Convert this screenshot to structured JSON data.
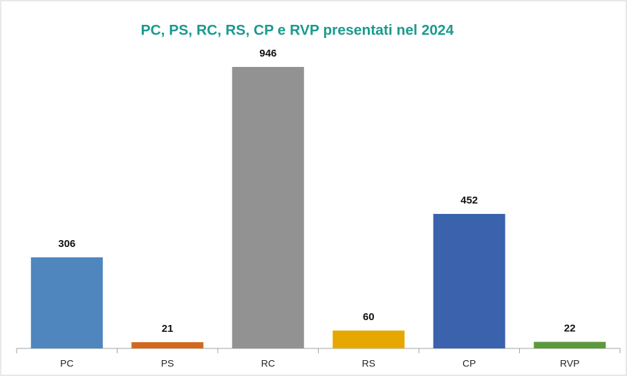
{
  "chart_data": {
    "type": "bar",
    "title": "PC, PS, RC, RS, CP e RVP presentati nel 2024",
    "categories": [
      "PC",
      "PS",
      "RC",
      "RS",
      "CP",
      "RVP"
    ],
    "values": [
      306,
      21,
      946,
      60,
      452,
      22
    ],
    "colors": [
      "#4f86be",
      "#d2691e",
      "#929292",
      "#e6a800",
      "#3a62ad",
      "#5a9a3c"
    ],
    "grid": false
  }
}
